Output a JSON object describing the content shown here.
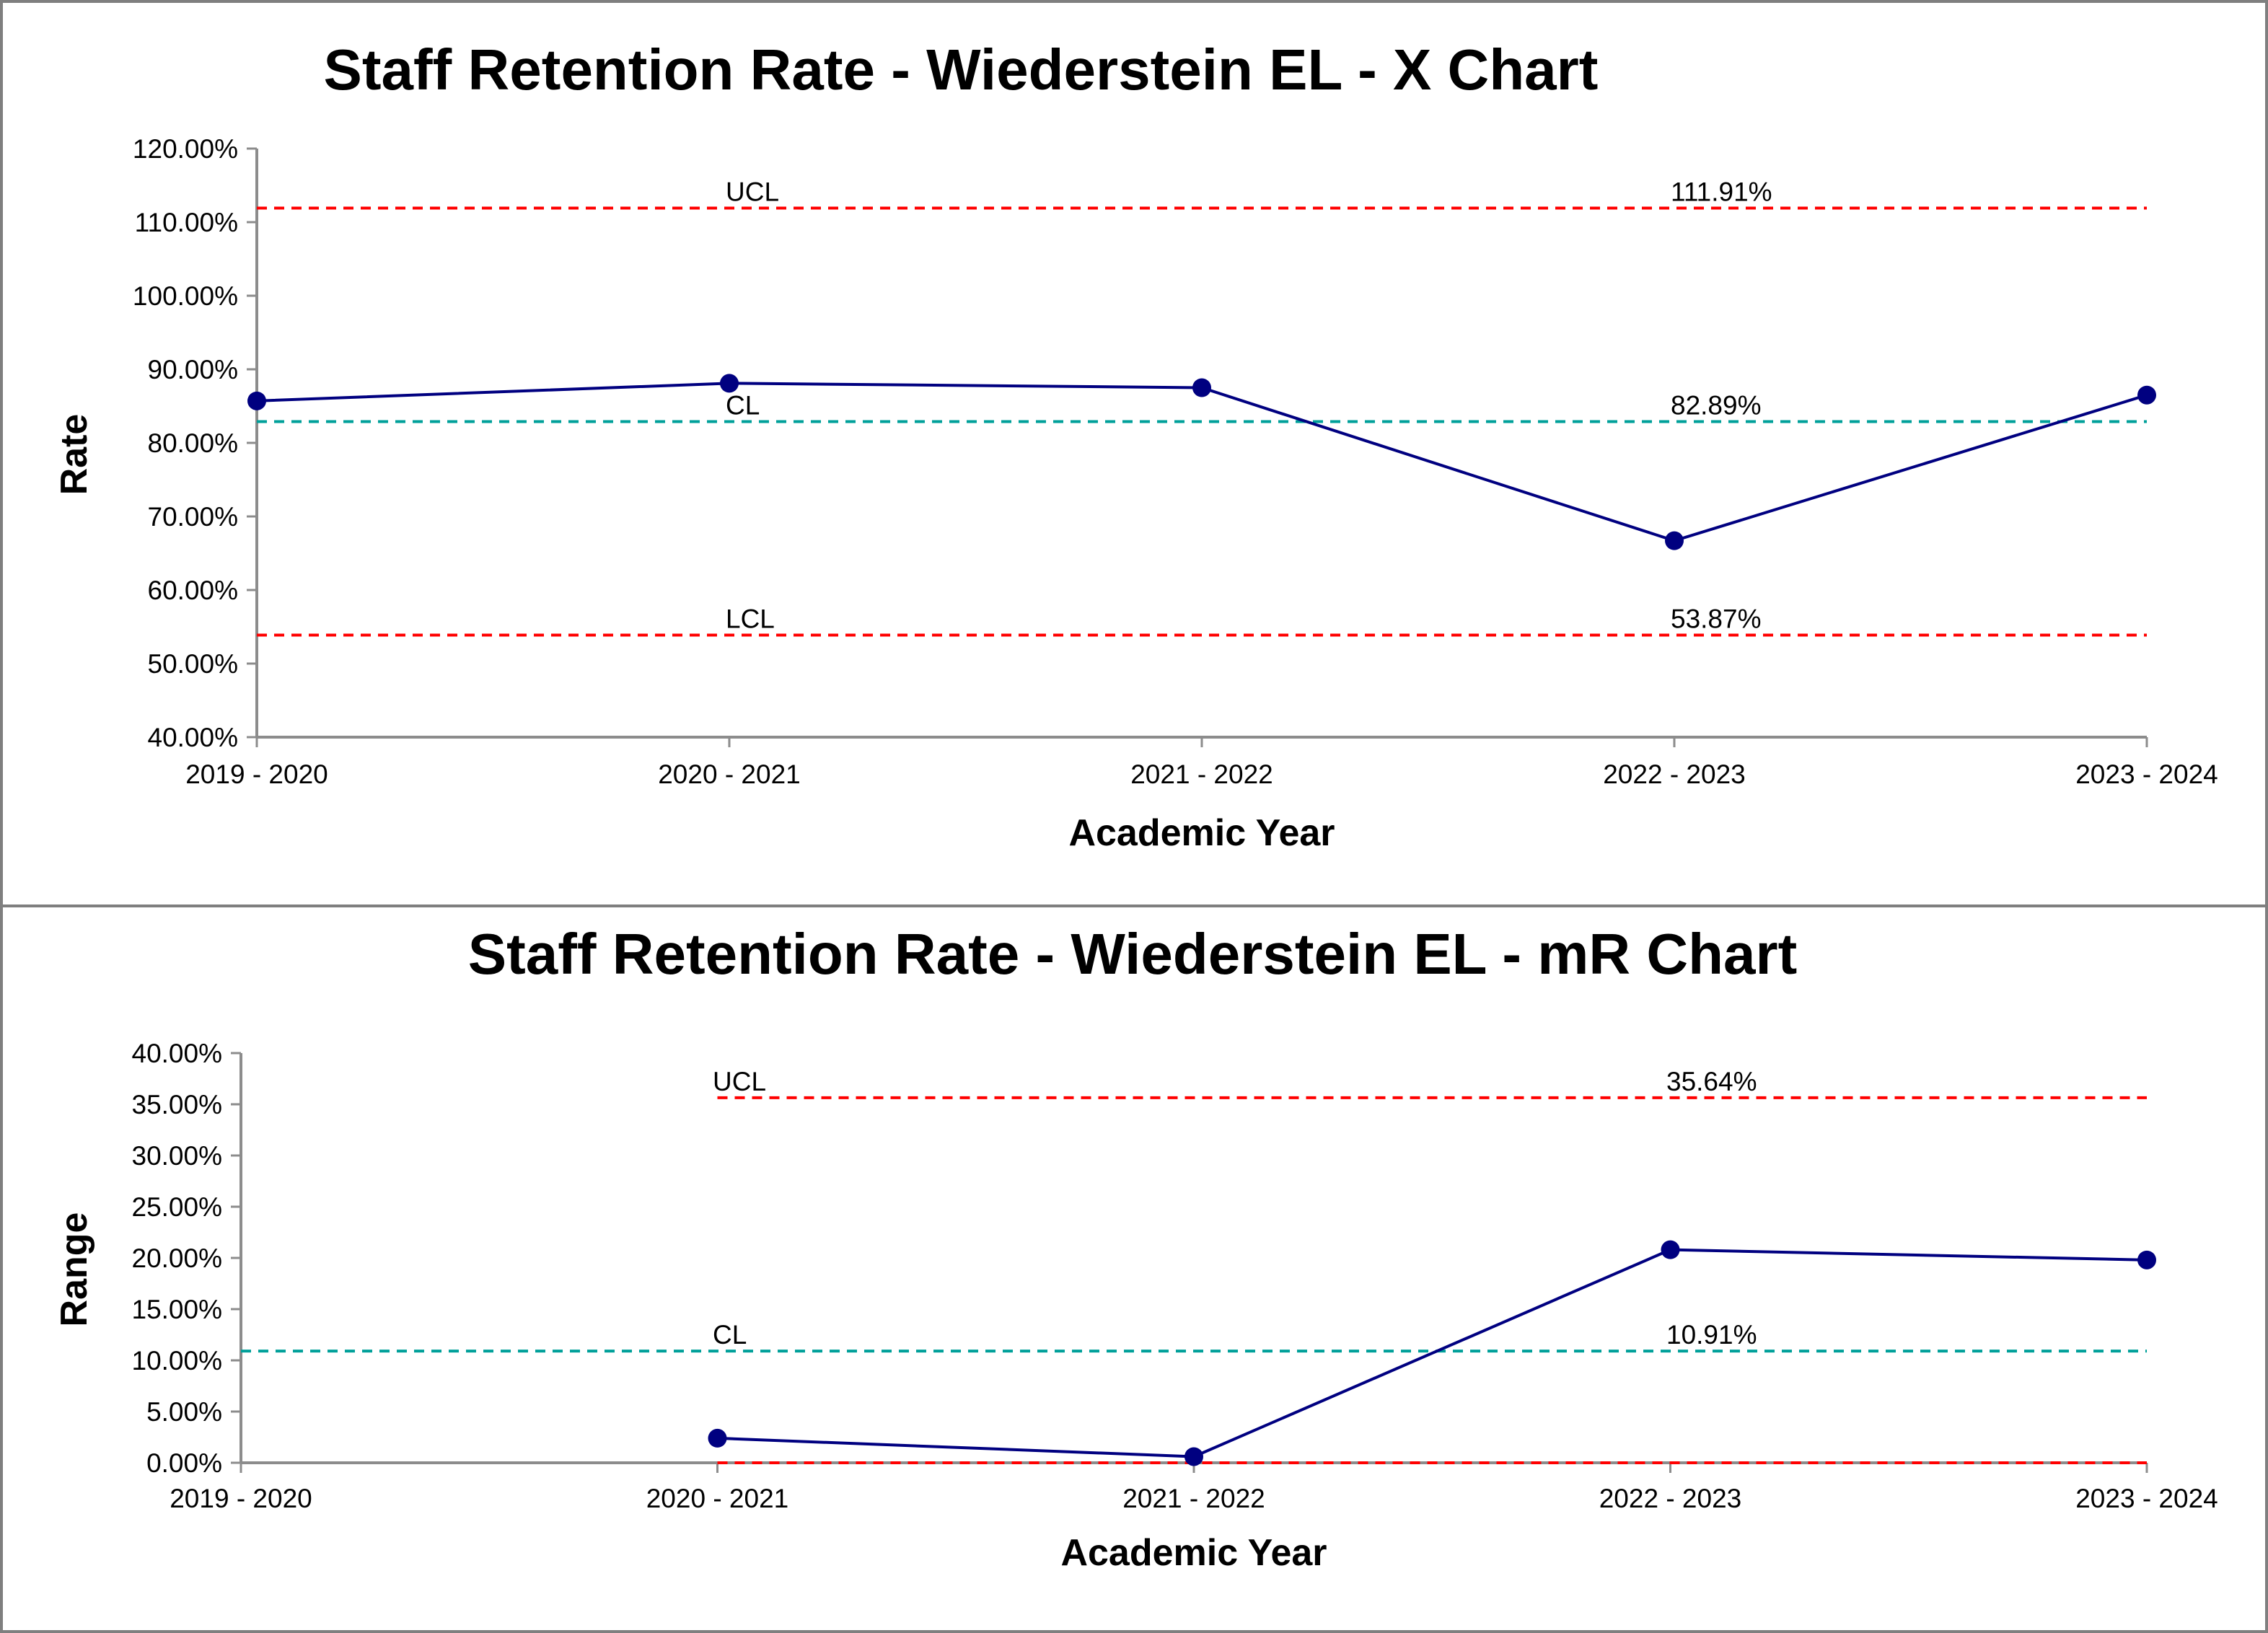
{
  "colors": {
    "series": "#000080",
    "control_limit": "#ff0000",
    "center_line": "#00a09a",
    "axis": "#8c8c8c",
    "border": "#7f7f7f"
  },
  "chart_data": [
    {
      "type": "line",
      "title": "Staff Retention Rate - Wiederstein EL - X Chart",
      "xlabel": "Academic Year",
      "ylabel": "Rate",
      "categories": [
        "2019 - 2020",
        "2020 - 2021",
        "2021 - 2022",
        "2022 - 2023",
        "2023 - 2024"
      ],
      "series": [
        {
          "values": [
            85.7,
            88.1,
            87.5,
            66.7,
            86.5
          ]
        }
      ],
      "ylim": [
        40,
        120
      ],
      "yticks": [
        40,
        50,
        60,
        70,
        80,
        90,
        100,
        110,
        120
      ],
      "ytick_labels": [
        "40.00%",
        "50.00%",
        "60.00%",
        "70.00%",
        "80.00%",
        "90.00%",
        "100.00%",
        "110.00%",
        "120.00%"
      ],
      "control_lines": [
        {
          "kind": "limit",
          "label": "UCL",
          "value": 111.91,
          "value_label": "111.91%",
          "from_category": 0
        },
        {
          "kind": "center",
          "label": "CL",
          "value": 82.89,
          "value_label": "82.89%",
          "from_category": 0
        },
        {
          "kind": "limit",
          "label": "LCL",
          "value": 53.87,
          "value_label": "53.87%",
          "from_category": 0
        }
      ],
      "grid": false,
      "legend": "none"
    },
    {
      "type": "line",
      "title": "Staff Retention Rate - Wiederstein EL - mR Chart",
      "xlabel": "Academic Year",
      "ylabel": "Range",
      "categories": [
        "2019 - 2020",
        "2020 - 2021",
        "2021 - 2022",
        "2022 - 2023",
        "2023 - 2024"
      ],
      "series": [
        {
          "values": [
            null,
            2.4,
            0.6,
            20.8,
            19.8
          ]
        }
      ],
      "ylim": [
        0,
        40
      ],
      "yticks": [
        0,
        5,
        10,
        15,
        20,
        25,
        30,
        35,
        40
      ],
      "ytick_labels": [
        "0.00%",
        "5.00%",
        "10.00%",
        "15.00%",
        "20.00%",
        "25.00%",
        "30.00%",
        "35.00%",
        "40.00%"
      ],
      "control_lines": [
        {
          "kind": "limit",
          "label": "UCL",
          "value": 35.64,
          "value_label": "35.64%",
          "from_category": 1
        },
        {
          "kind": "center",
          "label": "CL",
          "value": 10.91,
          "value_label": "10.91%",
          "from_category": 0
        },
        {
          "kind": "limit",
          "label": "",
          "value": 0,
          "value_label": "",
          "from_category": 1
        }
      ],
      "grid": false,
      "legend": "none"
    }
  ]
}
